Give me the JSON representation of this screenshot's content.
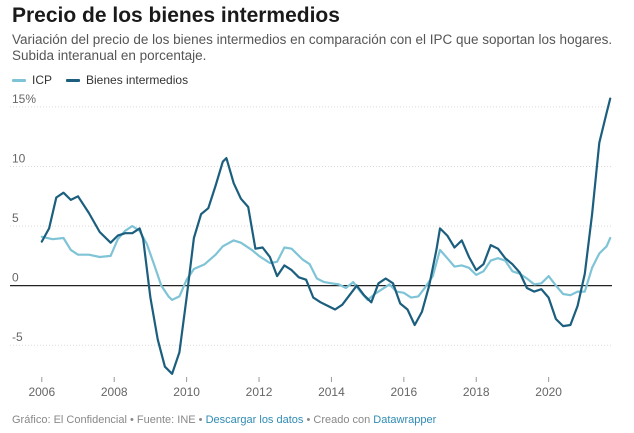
{
  "header": {
    "title": "Precio de los bienes intermedios",
    "subtitle": "Variación del precio de los bienes intermedios en comparación con el IPC que soportan los hogares. Subida interanual en porcentaje."
  },
  "footer": {
    "prefix": "Gráfico: El Confidencial • Fuente: INE • ",
    "download_link": "Descargar los datos",
    "middle": " • Creado con ",
    "tool_link": "Datawrapper"
  },
  "chart_data": {
    "type": "line",
    "ylim": [
      -7.5,
      16
    ],
    "xlim": [
      2005.95,
      2021.75
    ],
    "y_ticks": [
      15,
      10,
      5,
      0,
      -5
    ],
    "y_tick_labels": [
      "15%",
      "10",
      "5",
      "0",
      "-5"
    ],
    "x_ticks": [
      2006,
      2008,
      2010,
      2012,
      2014,
      2016,
      2018,
      2020
    ],
    "x_tick_labels": [
      "2006",
      "2008",
      "2010",
      "2012",
      "2014",
      "2016",
      "2018",
      "2020"
    ],
    "grid": true,
    "legend_position": "top-left",
    "series": [
      {
        "name": "ICP",
        "color": "#7fc4d6",
        "points": [
          [
            2006,
            4.1
          ],
          [
            2006.3,
            3.9
          ],
          [
            2006.6,
            4.0
          ],
          [
            2006.8,
            3.0
          ],
          [
            2007.0,
            2.6
          ],
          [
            2007.3,
            2.6
          ],
          [
            2007.6,
            2.4
          ],
          [
            2007.9,
            2.5
          ],
          [
            2008.1,
            3.9
          ],
          [
            2008.3,
            4.6
          ],
          [
            2008.5,
            5.0
          ],
          [
            2008.7,
            4.6
          ],
          [
            2008.9,
            3.5
          ],
          [
            2009.1,
            1.8
          ],
          [
            2009.3,
            0.0
          ],
          [
            2009.5,
            -0.9
          ],
          [
            2009.6,
            -1.2
          ],
          [
            2009.8,
            -0.9
          ],
          [
            2010.0,
            0.5
          ],
          [
            2010.2,
            1.4
          ],
          [
            2010.5,
            1.8
          ],
          [
            2010.8,
            2.6
          ],
          [
            2011.0,
            3.3
          ],
          [
            2011.3,
            3.8
          ],
          [
            2011.5,
            3.6
          ],
          [
            2011.8,
            3.0
          ],
          [
            2012.0,
            2.5
          ],
          [
            2012.3,
            1.9
          ],
          [
            2012.5,
            2.0
          ],
          [
            2012.7,
            3.2
          ],
          [
            2012.9,
            3.1
          ],
          [
            2013.2,
            2.2
          ],
          [
            2013.4,
            1.8
          ],
          [
            2013.6,
            0.6
          ],
          [
            2013.8,
            0.3
          ],
          [
            2014.0,
            0.2
          ],
          [
            2014.2,
            0.1
          ],
          [
            2014.4,
            -0.2
          ],
          [
            2014.6,
            0.3
          ],
          [
            2014.8,
            -0.5
          ],
          [
            2015.0,
            -1.2
          ],
          [
            2015.2,
            -0.7
          ],
          [
            2015.4,
            -0.3
          ],
          [
            2015.6,
            0.1
          ],
          [
            2015.8,
            -0.5
          ],
          [
            2016.0,
            -0.6
          ],
          [
            2016.2,
            -1.0
          ],
          [
            2016.4,
            -0.9
          ],
          [
            2016.6,
            -0.1
          ],
          [
            2016.8,
            0.8
          ],
          [
            2017.0,
            3.0
          ],
          [
            2017.2,
            2.3
          ],
          [
            2017.4,
            1.6
          ],
          [
            2017.6,
            1.7
          ],
          [
            2017.8,
            1.5
          ],
          [
            2018.0,
            0.9
          ],
          [
            2018.2,
            1.2
          ],
          [
            2018.4,
            2.1
          ],
          [
            2018.6,
            2.3
          ],
          [
            2018.8,
            2.1
          ],
          [
            2019.0,
            1.2
          ],
          [
            2019.2,
            1.0
          ],
          [
            2019.4,
            0.6
          ],
          [
            2019.6,
            0.1
          ],
          [
            2019.8,
            0.2
          ],
          [
            2020.0,
            0.8
          ],
          [
            2020.2,
            0.0
          ],
          [
            2020.4,
            -0.7
          ],
          [
            2020.6,
            -0.8
          ],
          [
            2020.8,
            -0.5
          ],
          [
            2021.0,
            -0.5
          ],
          [
            2021.2,
            1.5
          ],
          [
            2021.4,
            2.7
          ],
          [
            2021.6,
            3.3
          ],
          [
            2021.7,
            4.0
          ]
        ]
      },
      {
        "name": "Bienes intermedios",
        "color": "#1b5e7e",
        "points": [
          [
            2006,
            3.7
          ],
          [
            2006.2,
            4.8
          ],
          [
            2006.4,
            7.4
          ],
          [
            2006.6,
            7.8
          ],
          [
            2006.8,
            7.2
          ],
          [
            2007.0,
            7.5
          ],
          [
            2007.3,
            6.1
          ],
          [
            2007.6,
            4.5
          ],
          [
            2007.9,
            3.6
          ],
          [
            2008.1,
            4.2
          ],
          [
            2008.3,
            4.4
          ],
          [
            2008.5,
            4.4
          ],
          [
            2008.7,
            4.8
          ],
          [
            2008.8,
            3.9
          ],
          [
            2009.0,
            -1.0
          ],
          [
            2009.2,
            -4.5
          ],
          [
            2009.4,
            -6.8
          ],
          [
            2009.6,
            -7.4
          ],
          [
            2009.8,
            -5.6
          ],
          [
            2010.0,
            -1.0
          ],
          [
            2010.2,
            4.0
          ],
          [
            2010.4,
            6.0
          ],
          [
            2010.6,
            6.5
          ],
          [
            2010.8,
            8.4
          ],
          [
            2011.0,
            10.4
          ],
          [
            2011.1,
            10.7
          ],
          [
            2011.3,
            8.6
          ],
          [
            2011.5,
            7.3
          ],
          [
            2011.7,
            6.6
          ],
          [
            2011.9,
            3.1
          ],
          [
            2012.1,
            3.2
          ],
          [
            2012.3,
            2.4
          ],
          [
            2012.5,
            0.8
          ],
          [
            2012.7,
            1.7
          ],
          [
            2012.9,
            1.3
          ],
          [
            2013.1,
            0.7
          ],
          [
            2013.3,
            0.5
          ],
          [
            2013.5,
            -1.0
          ],
          [
            2013.7,
            -1.4
          ],
          [
            2013.9,
            -1.7
          ],
          [
            2014.1,
            -2.0
          ],
          [
            2014.3,
            -1.6
          ],
          [
            2014.5,
            -0.8
          ],
          [
            2014.7,
            0.0
          ],
          [
            2014.9,
            -0.8
          ],
          [
            2015.1,
            -1.4
          ],
          [
            2015.3,
            0.2
          ],
          [
            2015.5,
            0.6
          ],
          [
            2015.7,
            0.2
          ],
          [
            2015.9,
            -1.5
          ],
          [
            2016.1,
            -2.0
          ],
          [
            2016.3,
            -3.3
          ],
          [
            2016.5,
            -2.2
          ],
          [
            2016.7,
            0.0
          ],
          [
            2016.9,
            3.0
          ],
          [
            2017.0,
            4.8
          ],
          [
            2017.2,
            4.2
          ],
          [
            2017.4,
            3.2
          ],
          [
            2017.6,
            3.8
          ],
          [
            2017.8,
            2.4
          ],
          [
            2018.0,
            1.3
          ],
          [
            2018.2,
            1.8
          ],
          [
            2018.4,
            3.4
          ],
          [
            2018.6,
            3.1
          ],
          [
            2018.8,
            2.3
          ],
          [
            2019.0,
            1.8
          ],
          [
            2019.2,
            1.1
          ],
          [
            2019.4,
            -0.2
          ],
          [
            2019.6,
            -0.5
          ],
          [
            2019.8,
            -0.3
          ],
          [
            2020.0,
            -1.0
          ],
          [
            2020.2,
            -2.8
          ],
          [
            2020.4,
            -3.4
          ],
          [
            2020.6,
            -3.3
          ],
          [
            2020.8,
            -1.7
          ],
          [
            2021.0,
            1.0
          ],
          [
            2021.2,
            6.0
          ],
          [
            2021.4,
            12.0
          ],
          [
            2021.6,
            14.5
          ],
          [
            2021.7,
            15.7
          ]
        ]
      }
    ]
  }
}
